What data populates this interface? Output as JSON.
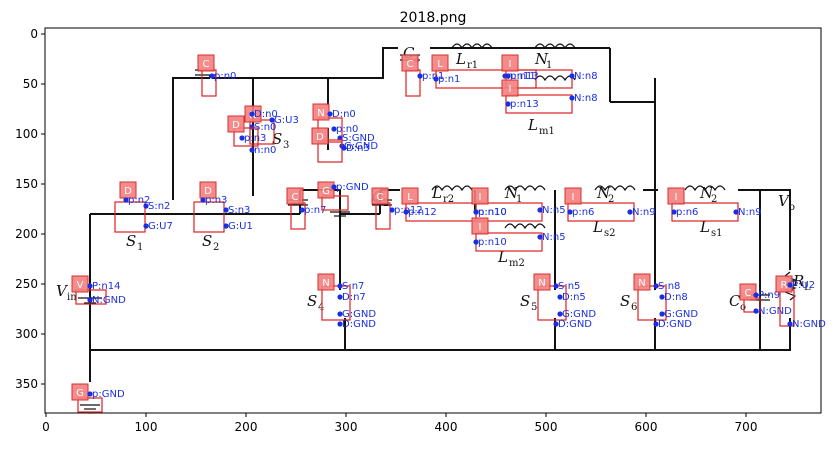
{
  "figure": {
    "title": "2018.png",
    "x_ticks": [
      "0",
      "100",
      "200",
      "300",
      "400",
      "500",
      "600",
      "700"
    ],
    "y_ticks": [
      "0",
      "50",
      "100",
      "150",
      "200",
      "250",
      "300",
      "350"
    ]
  },
  "circuit_labels": [
    {
      "main": "C",
      "sub": "1"
    },
    {
      "main": "L",
      "sub": "r1"
    },
    {
      "main": "N",
      "sub": "1"
    },
    {
      "main": "L",
      "sub": "m1"
    },
    {
      "main": "S",
      "sub": "3"
    },
    {
      "main": "C",
      "sub": "2"
    },
    {
      "main": "L",
      "sub": "r2"
    },
    {
      "main": "N",
      "sub": "1"
    },
    {
      "main": "N",
      "sub": "2"
    },
    {
      "main": "N",
      "sub": "2"
    },
    {
      "main": "V",
      "sub": "o"
    },
    {
      "main": "L",
      "sub": "s2"
    },
    {
      "main": "L",
      "sub": "s1"
    },
    {
      "main": "L",
      "sub": "m2"
    },
    {
      "main": "S",
      "sub": "1"
    },
    {
      "main": "S",
      "sub": "2"
    },
    {
      "main": "V",
      "sub": "in"
    },
    {
      "main": "S",
      "sub": "4"
    },
    {
      "main": "S",
      "sub": "5"
    },
    {
      "main": "S",
      "sub": "6"
    },
    {
      "main": "C",
      "sub": "o"
    },
    {
      "main": "R",
      "sub": "L"
    }
  ],
  "components": [
    {
      "letter": "C",
      "pins": [
        "p:n0"
      ]
    },
    {
      "letter": "C",
      "pins": [
        "p:n1"
      ]
    },
    {
      "letter": "L",
      "pins": [
        "p:n1",
        "n:n11"
      ]
    },
    {
      "letter": "I",
      "pins": [
        "p:n13",
        "N:n8"
      ]
    },
    {
      "letter": "I",
      "pins": [
        "p:n13",
        "N:n8"
      ]
    },
    {
      "letter": "N",
      "pins": [
        "D:n0",
        "S:n0",
        "G:U3"
      ]
    },
    {
      "letter": "D",
      "pins": [
        "p:n3",
        "n:n0"
      ]
    },
    {
      "letter": "N",
      "pins": [
        "D:n0",
        "S:GND",
        "G:GND"
      ]
    },
    {
      "letter": "D",
      "pins": [
        "p:n0",
        "D:n3"
      ]
    },
    {
      "letter": "D",
      "pins": [
        "p:n2",
        "S:n2",
        "G:U7"
      ]
    },
    {
      "letter": "D",
      "pins": [
        "p:n3",
        "S:n3",
        "G:U1"
      ]
    },
    {
      "letter": "C",
      "pins": [
        "p:n7"
      ]
    },
    {
      "letter": "G",
      "pins": [
        "p:GND"
      ]
    },
    {
      "letter": "C",
      "pins": [
        "p:n12"
      ]
    },
    {
      "letter": "L",
      "pins": [
        "p:n12",
        "n:n10"
      ]
    },
    {
      "letter": "I",
      "pins": [
        "p:n10",
        "N:n5"
      ]
    },
    {
      "letter": "I",
      "pins": [
        "p:n10",
        "N:n5"
      ]
    },
    {
      "letter": "I",
      "pins": [
        "p:n6",
        "N:n9"
      ]
    },
    {
      "letter": "I",
      "pins": [
        "p:n6",
        "N:n9"
      ]
    },
    {
      "letter": "V",
      "pins": [
        "P:n14",
        "N:GND"
      ]
    },
    {
      "letter": "N",
      "pins": [
        "S:n7",
        "D:n7",
        "G:GND",
        "D:GND"
      ]
    },
    {
      "letter": "N",
      "pins": [
        "S:n5",
        "D:n5",
        "G:GND",
        "D:GND"
      ]
    },
    {
      "letter": "N",
      "pins": [
        "S:n8",
        "D:n8",
        "G:GND",
        "D:GND"
      ]
    },
    {
      "letter": "C",
      "pins": [
        "P:n9",
        "N:GND"
      ]
    },
    {
      "letter": "R",
      "pins": [
        "P:U2",
        "N:GND"
      ]
    },
    {
      "letter": "G",
      "pins": [
        "p:GND"
      ]
    }
  ]
}
